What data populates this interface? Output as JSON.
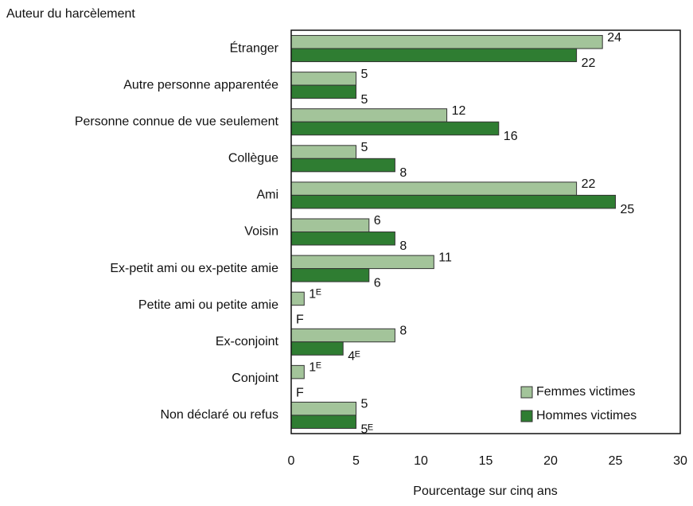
{
  "chart_data": {
    "type": "bar",
    "orientation": "horizontal",
    "header_label": "Auteur du harcèlement",
    "xlabel": "Pourcentage sur cinq ans",
    "categories": [
      "Étranger",
      "Autre personne apparentée",
      "Personne connue de vue seulement",
      "Collègue",
      "Ami",
      "Voisin",
      "Ex-petit ami ou ex-petite amie",
      "Petite ami ou petite amie",
      "Ex-conjoint",
      "Conjoint",
      "Non déclaré ou refus"
    ],
    "series": [
      {
        "name": "Femmes victimes",
        "color": "#a3c49a",
        "values": [
          24,
          5,
          12,
          5,
          22,
          6,
          11,
          1,
          8,
          1,
          5
        ],
        "value_labels": [
          "24",
          "5",
          "12",
          "5",
          "22",
          "6",
          "11",
          "1ᴱ",
          "8",
          "1ᴱ",
          "5"
        ]
      },
      {
        "name": "Hommes victimes",
        "color": "#2f7d32",
        "values": [
          22,
          5,
          16,
          8,
          25,
          8,
          6,
          null,
          4,
          null,
          5
        ],
        "value_labels": [
          "22",
          "5",
          "16",
          "8",
          "25",
          "8",
          "6",
          "F",
          "4ᴱ",
          "F",
          "5ᴱ"
        ]
      }
    ],
    "xlim": [
      0,
      30
    ],
    "xticks": [
      0,
      5,
      10,
      15,
      20,
      25,
      30
    ],
    "grid": false,
    "legend": "lower right"
  }
}
